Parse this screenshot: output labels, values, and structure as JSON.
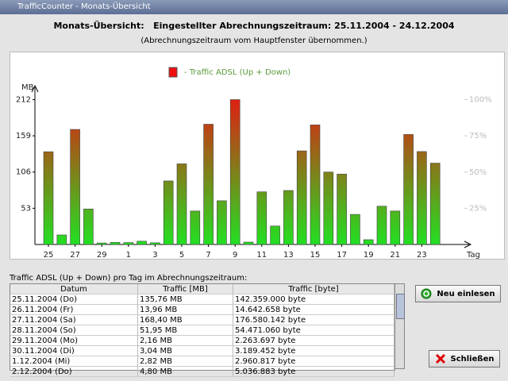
{
  "window": {
    "title": "TrafficCounter - Monats-Übersicht"
  },
  "header": {
    "title": "Monats-Übersicht:   Eingestellter Abrechnungszeitraum: 25.11.2004 - 24.12.2004",
    "subtitle": "(Abrechnungszeitraum vom Hauptfenster übernommen.)"
  },
  "chart_data": {
    "type": "bar",
    "y_label": "MB",
    "x_label": "Tag",
    "categories": [
      "25",
      null,
      "27",
      null,
      "29",
      null,
      "1",
      null,
      "3",
      null,
      "5",
      null,
      "7",
      null,
      "9",
      null,
      "11",
      null,
      "13",
      null,
      "15",
      null,
      "17",
      null,
      "19",
      null,
      "21",
      null,
      "23",
      null
    ],
    "series": [
      {
        "name": "- Traffic ADSL (Up + Down)",
        "color_top": "#ee1010",
        "color_bottom": "#22e022",
        "values": [
          135.76,
          13.96,
          168.4,
          51.95,
          2.16,
          3.04,
          2.82,
          4.8,
          2.5,
          93,
          118,
          49,
          176,
          64,
          212,
          3.5,
          77,
          27,
          79,
          137,
          175,
          106,
          103,
          44,
          7,
          56,
          49,
          161,
          136,
          119
        ]
      }
    ],
    "ylim": [
      0,
      230
    ],
    "yticks": [
      53,
      106,
      159,
      212
    ],
    "y2lim": [
      0,
      108.5
    ],
    "y2ticks": [
      {
        "value": 25,
        "label": "25%"
      },
      {
        "value": 50,
        "label": "50%"
      },
      {
        "value": 75,
        "label": "75%"
      },
      {
        "value": 100,
        "label": "100%"
      }
    ]
  },
  "table": {
    "caption": "Traffic ADSL (Up + Down) pro Tag im Abrechnungszeitraum:",
    "columns": [
      "Datum",
      "Traffic [MB]",
      "Traffic [byte]"
    ],
    "rows": [
      [
        "25.11.2004 (Do)",
        "135,76 MB",
        "142.359.000 byte"
      ],
      [
        "26.11.2004 (Fr)",
        "13,96 MB",
        "14.642.658 byte"
      ],
      [
        "27.11.2004 (Sa)",
        "168,40 MB",
        "176.580.142 byte"
      ],
      [
        "28.11.2004 (So)",
        "51,95 MB",
        "54.471.060 byte"
      ],
      [
        "29.11.2004 (Mo)",
        "2,16 MB",
        "2.263.697 byte"
      ],
      [
        "30.11.2004 (Di)",
        "3,04 MB",
        "3.189.452 byte"
      ],
      [
        "1.12.2004 (Mi)",
        "2,82 MB",
        "2.960.817 byte"
      ],
      [
        "2.12.2004 (Do)",
        "4,80 MB",
        "5.036.883 byte"
      ]
    ]
  },
  "buttons": {
    "reload": "Neu einlesen",
    "close": "Schließen"
  }
}
